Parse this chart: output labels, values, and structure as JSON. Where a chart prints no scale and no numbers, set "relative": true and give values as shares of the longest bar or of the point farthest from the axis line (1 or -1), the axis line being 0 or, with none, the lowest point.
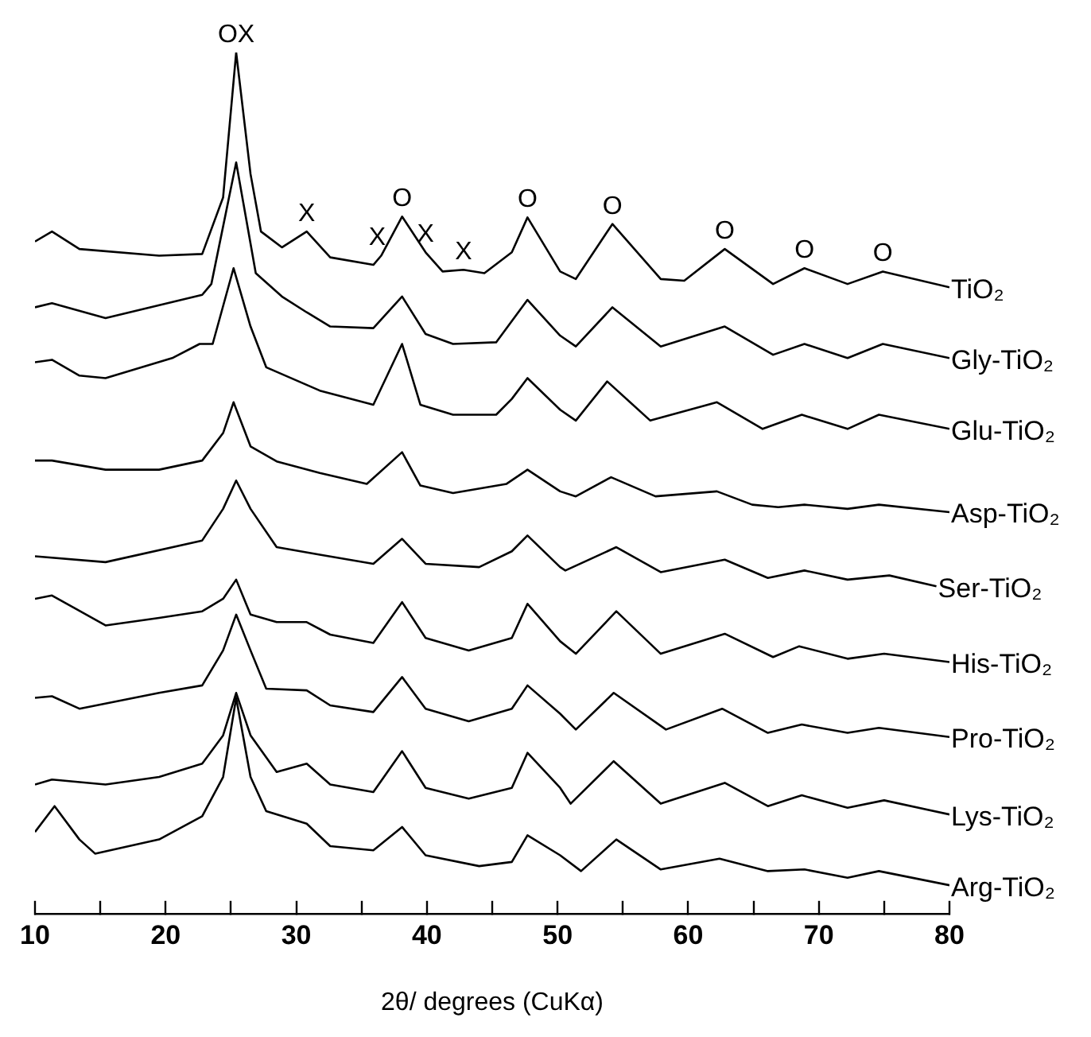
{
  "chart_data": {
    "type": "line",
    "relative": true,
    "marker": "none",
    "xlabel": "2θ/ degrees (CuKα)",
    "xlim": [
      10,
      80
    ],
    "xticks": [
      10,
      {
        "value": 15,
        "label": null
      },
      20,
      {
        "value": 25,
        "label": null
      },
      30,
      {
        "value": 35,
        "label": null
      },
      40,
      {
        "value": 45,
        "label": null
      },
      50,
      {
        "value": 55,
        "label": null
      },
      60,
      {
        "value": 65,
        "label": null
      },
      70,
      {
        "value": 75,
        "label": null
      },
      80
    ],
    "series": [
      {
        "name": "TiO₂",
        "color": "#000000",
        "x": [
          10,
          11.3,
          13.4,
          19.5,
          22.8,
          24.4,
          25.4,
          26.5,
          27.3,
          28.9,
          30.8,
          32.6,
          35.9,
          36.5,
          38.1,
          39.9,
          41.2,
          42.8,
          44.4,
          46.5,
          47.7,
          50.2,
          51.4,
          54.2,
          57.9,
          59.7,
          62.8,
          66.5,
          68.9,
          72.2,
          74.9,
          80
        ],
        "values": [
          0.773,
          0.785,
          0.764,
          0.756,
          0.758,
          0.826,
          1.0,
          0.854,
          0.785,
          0.766,
          0.785,
          0.754,
          0.745,
          0.756,
          0.803,
          0.76,
          0.737,
          0.739,
          0.735,
          0.76,
          0.802,
          0.737,
          0.728,
          0.794,
          0.728,
          0.726,
          0.764,
          0.722,
          0.741,
          0.722,
          0.737,
          0.718
        ]
      },
      {
        "name": "Gly-TiO₂",
        "color": "#000000",
        "x": [
          10,
          11.3,
          15.4,
          22.8,
          23.5,
          25.4,
          26.9,
          28.9,
          30.8,
          32.6,
          35.9,
          38.1,
          39.9,
          42,
          45.3,
          47.7,
          50.2,
          51.4,
          54.2,
          57.9,
          62.8,
          66.5,
          68.9,
          72.2,
          74.9,
          80
        ],
        "values": [
          0.694,
          0.699,
          0.681,
          0.709,
          0.722,
          0.868,
          0.735,
          0.707,
          0.688,
          0.671,
          0.669,
          0.707,
          0.662,
          0.65,
          0.652,
          0.703,
          0.66,
          0.647,
          0.694,
          0.647,
          0.671,
          0.637,
          0.65,
          0.633,
          0.65,
          0.633
        ]
      },
      {
        "name": "Glu-TiO₂",
        "color": "#000000",
        "x": [
          10,
          11.3,
          13.4,
          15.4,
          20.5,
          22.6,
          23.6,
          25.2,
          26.5,
          27.7,
          31.8,
          35.9,
          38.1,
          39.5,
          42,
          45.3,
          46.5,
          47.7,
          50.2,
          51.4,
          53.8,
          57.1,
          62.2,
          65.7,
          68.7,
          72.2,
          74.6,
          80
        ],
        "values": [
          0.628,
          0.631,
          0.612,
          0.609,
          0.633,
          0.65,
          0.65,
          0.741,
          0.671,
          0.622,
          0.594,
          0.577,
          0.65,
          0.577,
          0.565,
          0.565,
          0.584,
          0.609,
          0.571,
          0.558,
          0.605,
          0.558,
          0.58,
          0.548,
          0.565,
          0.548,
          0.565,
          0.548
        ]
      },
      {
        "name": "Asp-TiO₂",
        "color": "#000000",
        "x": [
          10,
          11.3,
          15.4,
          19.5,
          22.8,
          24.4,
          25.2,
          26.5,
          28.5,
          31.8,
          35.4,
          38.1,
          39.5,
          42,
          46.1,
          47.7,
          50.2,
          51.4,
          54.1,
          57.5,
          62.2,
          64.9,
          66.9,
          68.9,
          72.2,
          74.6,
          80
        ],
        "values": [
          0.51,
          0.51,
          0.499,
          0.499,
          0.51,
          0.543,
          0.58,
          0.527,
          0.509,
          0.495,
          0.482,
          0.52,
          0.48,
          0.471,
          0.482,
          0.499,
          0.473,
          0.467,
          0.49,
          0.467,
          0.473,
          0.457,
          0.454,
          0.457,
          0.452,
          0.457,
          0.448
        ]
      },
      {
        "name": "Ser-TiO₂",
        "color": "#000000",
        "x": [
          10,
          15.4,
          22.8,
          24.4,
          25.4,
          26.5,
          28.5,
          31.8,
          35.9,
          38.1,
          39.9,
          44,
          46.5,
          47.7,
          50.2,
          50.6,
          54.5,
          57.9,
          62.8,
          66.1,
          68.9,
          72.2,
          75.4,
          79
        ],
        "values": [
          0.395,
          0.388,
          0.414,
          0.452,
          0.486,
          0.452,
          0.406,
          0.397,
          0.386,
          0.416,
          0.386,
          0.382,
          0.401,
          0.42,
          0.382,
          0.378,
          0.406,
          0.376,
          0.391,
          0.369,
          0.378,
          0.367,
          0.372,
          0.359
        ]
      },
      {
        "name": "His-TiO₂",
        "color": "#000000",
        "x": [
          10,
          11.3,
          15.4,
          19.5,
          22.8,
          24.4,
          25.4,
          26.5,
          28.5,
          30.8,
          32.6,
          35.9,
          38.1,
          39.9,
          43.2,
          46.5,
          47.7,
          50.2,
          51.4,
          54.5,
          57.9,
          62.8,
          66.5,
          68.5,
          72.2,
          75,
          80
        ],
        "values": [
          0.344,
          0.348,
          0.312,
          0.321,
          0.329,
          0.344,
          0.367,
          0.325,
          0.316,
          0.316,
          0.301,
          0.291,
          0.34,
          0.297,
          0.282,
          0.297,
          0.338,
          0.293,
          0.278,
          0.329,
          0.278,
          0.302,
          0.274,
          0.287,
          0.272,
          0.278,
          0.268
        ]
      },
      {
        "name": "Pro-TiO₂",
        "color": "#000000",
        "x": [
          10,
          11.3,
          13.4,
          19.5,
          22.8,
          24.4,
          25.4,
          26.5,
          27.7,
          30.8,
          32.6,
          35.9,
          38.1,
          39.9,
          43.2,
          46.5,
          47.7,
          50.2,
          51.4,
          54.3,
          58.3,
          62.6,
          66.1,
          68.7,
          72.2,
          74.6,
          80
        ],
        "values": [
          0.225,
          0.227,
          0.212,
          0.231,
          0.24,
          0.282,
          0.325,
          0.282,
          0.236,
          0.234,
          0.216,
          0.208,
          0.25,
          0.212,
          0.197,
          0.212,
          0.24,
          0.206,
          0.187,
          0.231,
          0.187,
          0.212,
          0.183,
          0.193,
          0.183,
          0.189,
          0.178
        ]
      },
      {
        "name": "Lys-TiO₂",
        "color": "#000000",
        "x": [
          10,
          11.3,
          15.4,
          19.5,
          22.8,
          24.4,
          25.4,
          26.5,
          28.5,
          30.8,
          32.6,
          35.9,
          38.1,
          39.9,
          43.2,
          46.5,
          47.7,
          50.2,
          51,
          54.3,
          57.9,
          62.8,
          66.1,
          68.7,
          72.2,
          75,
          80
        ],
        "values": [
          0.121,
          0.127,
          0.121,
          0.13,
          0.146,
          0.18,
          0.231,
          0.18,
          0.136,
          0.146,
          0.121,
          0.112,
          0.161,
          0.117,
          0.104,
          0.117,
          0.159,
          0.117,
          0.098,
          0.149,
          0.098,
          0.123,
          0.095,
          0.108,
          0.093,
          0.102,
          0.085
        ]
      },
      {
        "name": "Arg-TiO₂",
        "color": "#000000",
        "x": [
          10,
          11.5,
          13.4,
          14.6,
          19.5,
          22.8,
          24.4,
          25.4,
          26.5,
          27.7,
          30.8,
          32.6,
          35.9,
          38.1,
          39.9,
          44,
          46.5,
          47.7,
          50.2,
          51.8,
          54.5,
          57.9,
          62.4,
          66.1,
          68.9,
          72.2,
          74.6,
          80
        ],
        "values": [
          0.064,
          0.095,
          0.055,
          0.038,
          0.055,
          0.083,
          0.13,
          0.225,
          0.13,
          0.089,
          0.074,
          0.047,
          0.042,
          0.07,
          0.036,
          0.023,
          0.028,
          0.06,
          0.036,
          0.017,
          0.055,
          0.019,
          0.032,
          0.017,
          0.019,
          0.009,
          0.017,
          0.0
        ]
      }
    ],
    "annotations": [
      {
        "text": "OX",
        "x": 25.4,
        "y": 1.0
      },
      {
        "text": "X",
        "x": 30.8,
        "y": 0.785
      },
      {
        "text": "X",
        "x": 36.2,
        "y": 0.756
      },
      {
        "text": "O",
        "x": 38.1,
        "y": 0.803
      },
      {
        "text": "X",
        "x": 39.9,
        "y": 0.76
      },
      {
        "text": "X",
        "x": 42.8,
        "y": 0.739
      },
      {
        "text": "O",
        "x": 47.7,
        "y": 0.802
      },
      {
        "text": "O",
        "x": 54.2,
        "y": 0.794
      },
      {
        "text": "O",
        "x": 62.8,
        "y": 0.764
      },
      {
        "text": "O",
        "x": 68.9,
        "y": 0.741
      },
      {
        "text": "O",
        "x": 74.9,
        "y": 0.737
      }
    ]
  }
}
